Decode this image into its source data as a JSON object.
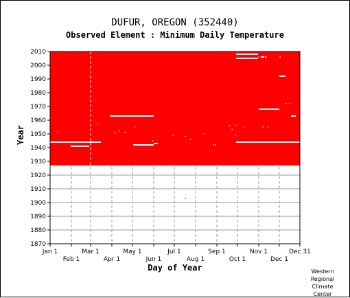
{
  "chart_data": {
    "type": "heatmap",
    "title": "DUFUR, OREGON    (352440)",
    "subtitle": "Observed Element : Minimum Daily Temperature",
    "xlabel": "Day of Year",
    "ylabel": "Year",
    "ylim": [
      1870,
      2010
    ],
    "xlim": [
      1,
      365
    ],
    "y_ticks": [
      1870,
      1880,
      1890,
      1900,
      1910,
      1920,
      1930,
      1940,
      1950,
      1960,
      1970,
      1980,
      1990,
      2000,
      2010
    ],
    "x_ticks_top": [
      {
        "label": "Jan 1",
        "day": 1
      },
      {
        "label": "Mar 1",
        "day": 60
      },
      {
        "label": "May 1",
        "day": 121
      },
      {
        "label": "Jul 1",
        "day": 182
      },
      {
        "label": "Sep 1",
        "day": 244
      },
      {
        "label": "Nov 1",
        "day": 305
      },
      {
        "label": "Dec 31",
        "day": 365
      }
    ],
    "x_ticks_bottom": [
      {
        "label": "Feb 1",
        "day": 32
      },
      {
        "label": "Apr 1",
        "day": 91
      },
      {
        "label": "Jun 1",
        "day": 152
      },
      {
        "label": "Aug 1",
        "day": 213
      },
      {
        "label": "Oct 1",
        "day": 274
      },
      {
        "label": "Dec 1",
        "day": 335
      }
    ],
    "grid": true,
    "colors": {
      "observed": "#ff0000",
      "missing": "#ffffff",
      "grid": "#999999"
    },
    "observed_block": {
      "years": [
        1927,
        2010
      ],
      "days": [
        1,
        365
      ]
    },
    "missing_segments": [
      {
        "year": 2008,
        "days": [
          272,
          304
        ]
      },
      {
        "year": 2006,
        "days": [
          308,
          313
        ]
      },
      {
        "year": 2006,
        "days": [
          314,
          315
        ]
      },
      {
        "year": 2005,
        "days": [
          272,
          304
        ]
      },
      {
        "year": 1992,
        "days": [
          335,
          344
        ]
      },
      {
        "year": 1968,
        "days": [
          305,
          335
        ]
      },
      {
        "year": 1963,
        "days": [
          88,
          152
        ]
      },
      {
        "year": 1963,
        "days": [
          352,
          359
        ]
      },
      {
        "year": 1944,
        "days": [
          1,
          75
        ]
      },
      {
        "year": 1944,
        "days": [
          272,
          365
        ]
      },
      {
        "year": 1943,
        "days": [
          152,
          158
        ]
      },
      {
        "year": 1942,
        "days": [
          122,
          152
        ]
      },
      {
        "year": 1941,
        "days": [
          31,
          58
        ]
      }
    ],
    "missing_points": [
      {
        "year": 2006,
        "day": 305
      },
      {
        "year": 2006,
        "day": 336
      },
      {
        "year": 1972,
        "day": 345
      },
      {
        "year": 1972,
        "day": 350
      },
      {
        "year": 1957,
        "day": 70
      },
      {
        "year": 1956,
        "day": 262
      },
      {
        "year": 1956,
        "day": 271
      },
      {
        "year": 1955,
        "day": 311
      },
      {
        "year": 1955,
        "day": 283
      },
      {
        "year": 1955,
        "day": 124
      },
      {
        "year": 1955,
        "day": 318
      },
      {
        "year": 1953,
        "day": 266
      },
      {
        "year": 1952,
        "day": 101
      },
      {
        "year": 1951,
        "day": 12
      },
      {
        "year": 1951,
        "day": 95
      },
      {
        "year": 1951,
        "day": 110
      },
      {
        "year": 1950,
        "day": 226
      },
      {
        "year": 1949,
        "day": 180
      },
      {
        "year": 1949,
        "day": 271
      },
      {
        "year": 1948,
        "day": 198
      },
      {
        "year": 1946,
        "day": 205
      },
      {
        "year": 1945,
        "day": 150
      },
      {
        "year": 1942,
        "day": 239
      },
      {
        "year": 1942,
        "day": 242
      },
      {
        "year": 1903,
        "day": 198
      }
    ]
  },
  "credit": [
    "Western",
    "Regional",
    "Climate",
    "Center"
  ]
}
